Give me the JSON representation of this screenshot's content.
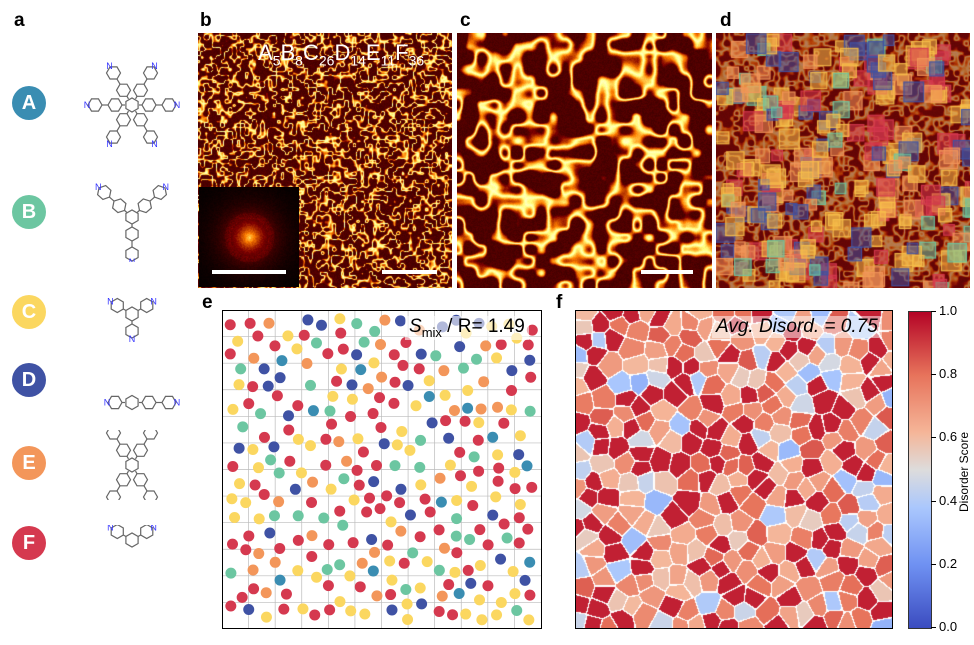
{
  "panels": {
    "a": "a",
    "b": "b",
    "c": "c",
    "d": "d",
    "e": "e",
    "f": "f"
  },
  "molecules": [
    {
      "letter": "A",
      "color": "#3a8db2"
    },
    {
      "letter": "B",
      "color": "#6cc6a1"
    },
    {
      "letter": "C",
      "color": "#fbd760"
    },
    {
      "letter": "D",
      "color": "#3f52a4"
    },
    {
      "letter": "E",
      "color": "#f3965a"
    },
    {
      "letter": "F",
      "color": "#d5394f"
    }
  ],
  "atom_label": "N",
  "composition": [
    {
      "letter": "A",
      "count": "5"
    },
    {
      "letter": "B",
      "count": "8"
    },
    {
      "letter": "C",
      "count": "26"
    },
    {
      "letter": "D",
      "count": "14"
    },
    {
      "letter": "E",
      "count": "11"
    },
    {
      "letter": "F",
      "count": "36"
    }
  ],
  "panel_e": {
    "symbol": "S",
    "subscript": "mix",
    "text": " / R= 1.49"
  },
  "panel_f": {
    "text": "Avg. Disord. = 0.75"
  },
  "colorbar": {
    "label": "Disorder Score",
    "ticks": [
      "0.0",
      "0.2",
      "0.4",
      "0.6",
      "0.8",
      "1.0"
    ],
    "colormap": "coolwarm",
    "range": [
      0,
      1
    ]
  }
}
